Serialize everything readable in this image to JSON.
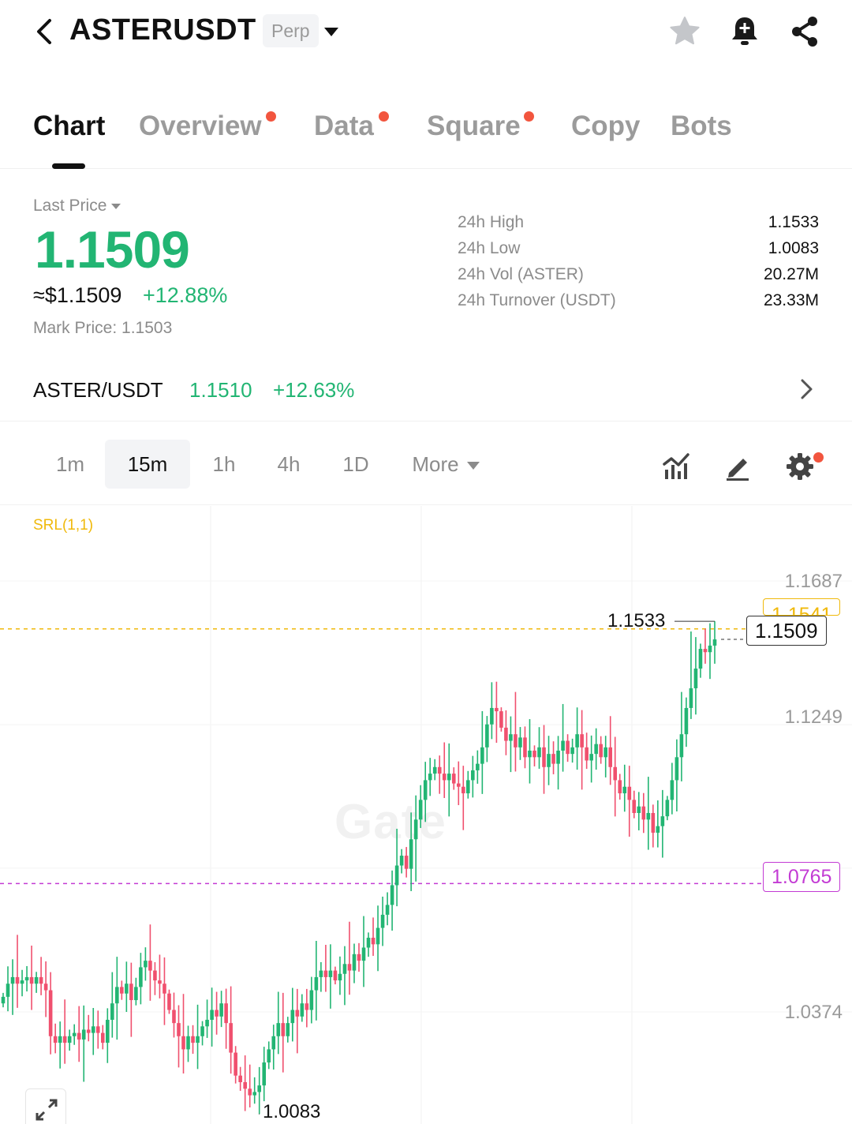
{
  "header": {
    "symbol": "ASTERUSDT",
    "contract_type": "Perp"
  },
  "tabs": [
    {
      "label": "Chart",
      "active": true,
      "dot": false
    },
    {
      "label": "Overview",
      "active": false,
      "dot": true
    },
    {
      "label": "Data",
      "active": false,
      "dot": true
    },
    {
      "label": "Square",
      "active": false,
      "dot": true
    },
    {
      "label": "Copy",
      "active": false,
      "dot": false
    },
    {
      "label": "Bots",
      "active": false,
      "dot": false
    }
  ],
  "price": {
    "last_price_label": "Last Price",
    "last_price": "1.1509",
    "usd_price": "≈$1.1509",
    "change_pct": "+12.88%",
    "mark_price_label": "Mark Price:",
    "mark_price": "1.1503"
  },
  "stats": [
    {
      "label": "24h High",
      "value": "1.1533"
    },
    {
      "label": "24h Low",
      "value": "1.0083"
    },
    {
      "label": "24h Vol (ASTER)",
      "value": "20.27M"
    },
    {
      "label": "24h Turnover (USDT)",
      "value": "23.33M"
    }
  ],
  "spot": {
    "pair": "ASTER/USDT",
    "price": "1.1510",
    "change": "+12.63%"
  },
  "intervals": {
    "items": [
      "1m",
      "15m",
      "1h",
      "4h",
      "1D"
    ],
    "active": "15m",
    "more_label": "More"
  },
  "chart": {
    "indicator_label": "SRL(1,1)",
    "watermark": "Gate",
    "axis_ticks": [
      "1.1687",
      "1.1249",
      "1.0374"
    ],
    "high_label": "1.1533",
    "low_label": "1.0083",
    "current_price": "1.1509",
    "srl_upper": "1.1541",
    "srl_lower": "1.0765",
    "colors": {
      "up": "#22b573",
      "down": "#f0506e",
      "srl_upper": "#f0b90b",
      "srl_lower": "#c33bd4"
    }
  },
  "chart_data": {
    "type": "candlestick",
    "interval": "15m",
    "y_ticks": [
      1.1687,
      1.1249,
      1.0374
    ],
    "high": 1.1533,
    "low": 1.0083,
    "last": 1.1509,
    "close": [
      1.042,
      1.046,
      1.048,
      1.046,
      1.047,
      1.048,
      1.046,
      1.048,
      1.046,
      1.044,
      1.03,
      1.028,
      1.03,
      1.028,
      1.03,
      1.031,
      1.029,
      1.032,
      1.031,
      1.033,
      1.031,
      1.028,
      1.035,
      1.04,
      1.045,
      1.043,
      1.046,
      1.041,
      1.045,
      1.051,
      1.053,
      1.05,
      1.047,
      1.046,
      1.043,
      1.038,
      1.034,
      1.03,
      1.026,
      1.03,
      1.028,
      1.03,
      1.033,
      1.035,
      1.038,
      1.036,
      1.04,
      1.034,
      1.025,
      1.018,
      1.016,
      1.014,
      1.012,
      1.013,
      1.015,
      1.022,
      1.026,
      1.03,
      1.034,
      1.03,
      1.034,
      1.038,
      1.036,
      1.04,
      1.038,
      1.044,
      1.048,
      1.05,
      1.048,
      1.05,
      1.047,
      1.049,
      1.052,
      1.05,
      1.055,
      1.053,
      1.057,
      1.06,
      1.058,
      1.063,
      1.067,
      1.07,
      1.076,
      1.082,
      1.085,
      1.081,
      1.09,
      1.096,
      1.102,
      1.108,
      1.11,
      1.112,
      1.11,
      1.108,
      1.11,
      1.107,
      1.106,
      1.104,
      1.108,
      1.111,
      1.113,
      1.118,
      1.125,
      1.13,
      1.129,
      1.124,
      1.12,
      1.122,
      1.118,
      1.121,
      1.115,
      1.117,
      1.115,
      1.118,
      1.112,
      1.116,
      1.113,
      1.117,
      1.12,
      1.116,
      1.118,
      1.122,
      1.118,
      1.114,
      1.116,
      1.119,
      1.115,
      1.118,
      1.112,
      1.108,
      1.104,
      1.106,
      1.102,
      1.098,
      1.1,
      1.096,
      1.098,
      1.092,
      1.094,
      1.097,
      1.102,
      1.108,
      1.115,
      1.122,
      1.13,
      1.136,
      1.142,
      1.148,
      1.147,
      1.149,
      1.1509
    ]
  }
}
